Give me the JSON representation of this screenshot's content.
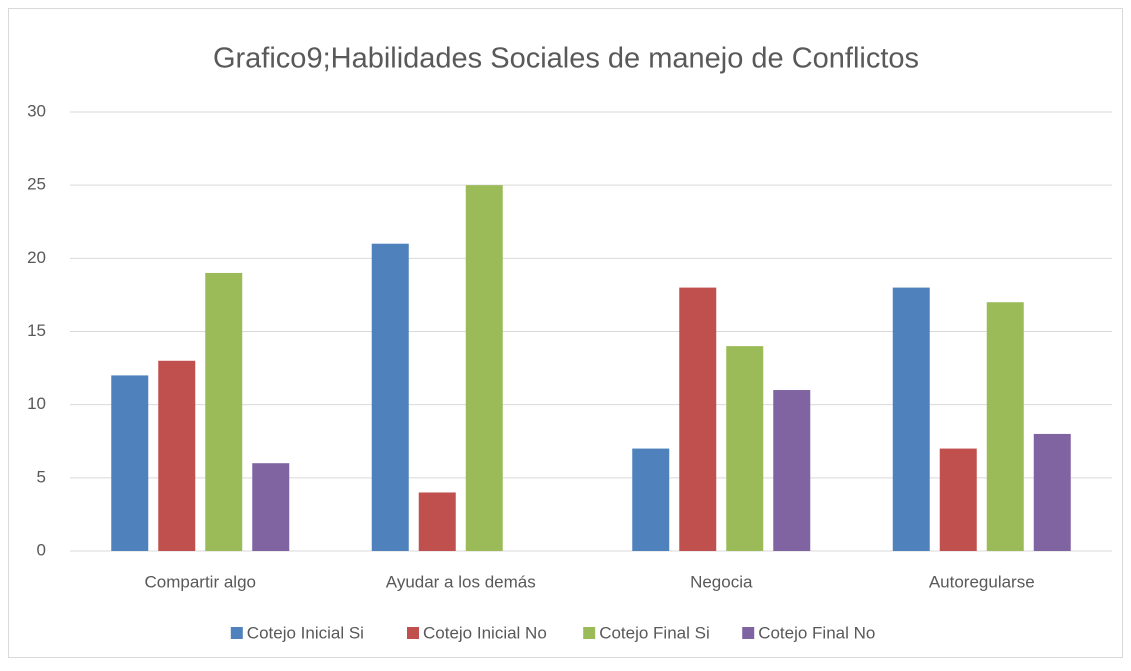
{
  "chart_data": {
    "type": "bar",
    "title": "Grafico9;Habilidades Sociales de manejo de Conflictos",
    "categories": [
      "Compartir algo",
      "Ayudar a los demás",
      "Negocia",
      "Autoregularse"
    ],
    "series": [
      {
        "name": "Cotejo Inicial Si",
        "color": "#4f81bd",
        "values": [
          12,
          21,
          7,
          18
        ]
      },
      {
        "name": "Cotejo Inicial No",
        "color": "#c0504d",
        "values": [
          13,
          4,
          18,
          7
        ]
      },
      {
        "name": "Cotejo Final Si",
        "color": "#9bbb59",
        "values": [
          19,
          25,
          14,
          17
        ]
      },
      {
        "name": "Cotejo Final No",
        "color": "#8064a2",
        "values": [
          6,
          0,
          11,
          8
        ]
      }
    ],
    "ylim": [
      0,
      30
    ],
    "yticks": [
      0,
      5,
      10,
      15,
      20,
      25,
      30
    ],
    "grid": true,
    "legend": "bottom"
  }
}
